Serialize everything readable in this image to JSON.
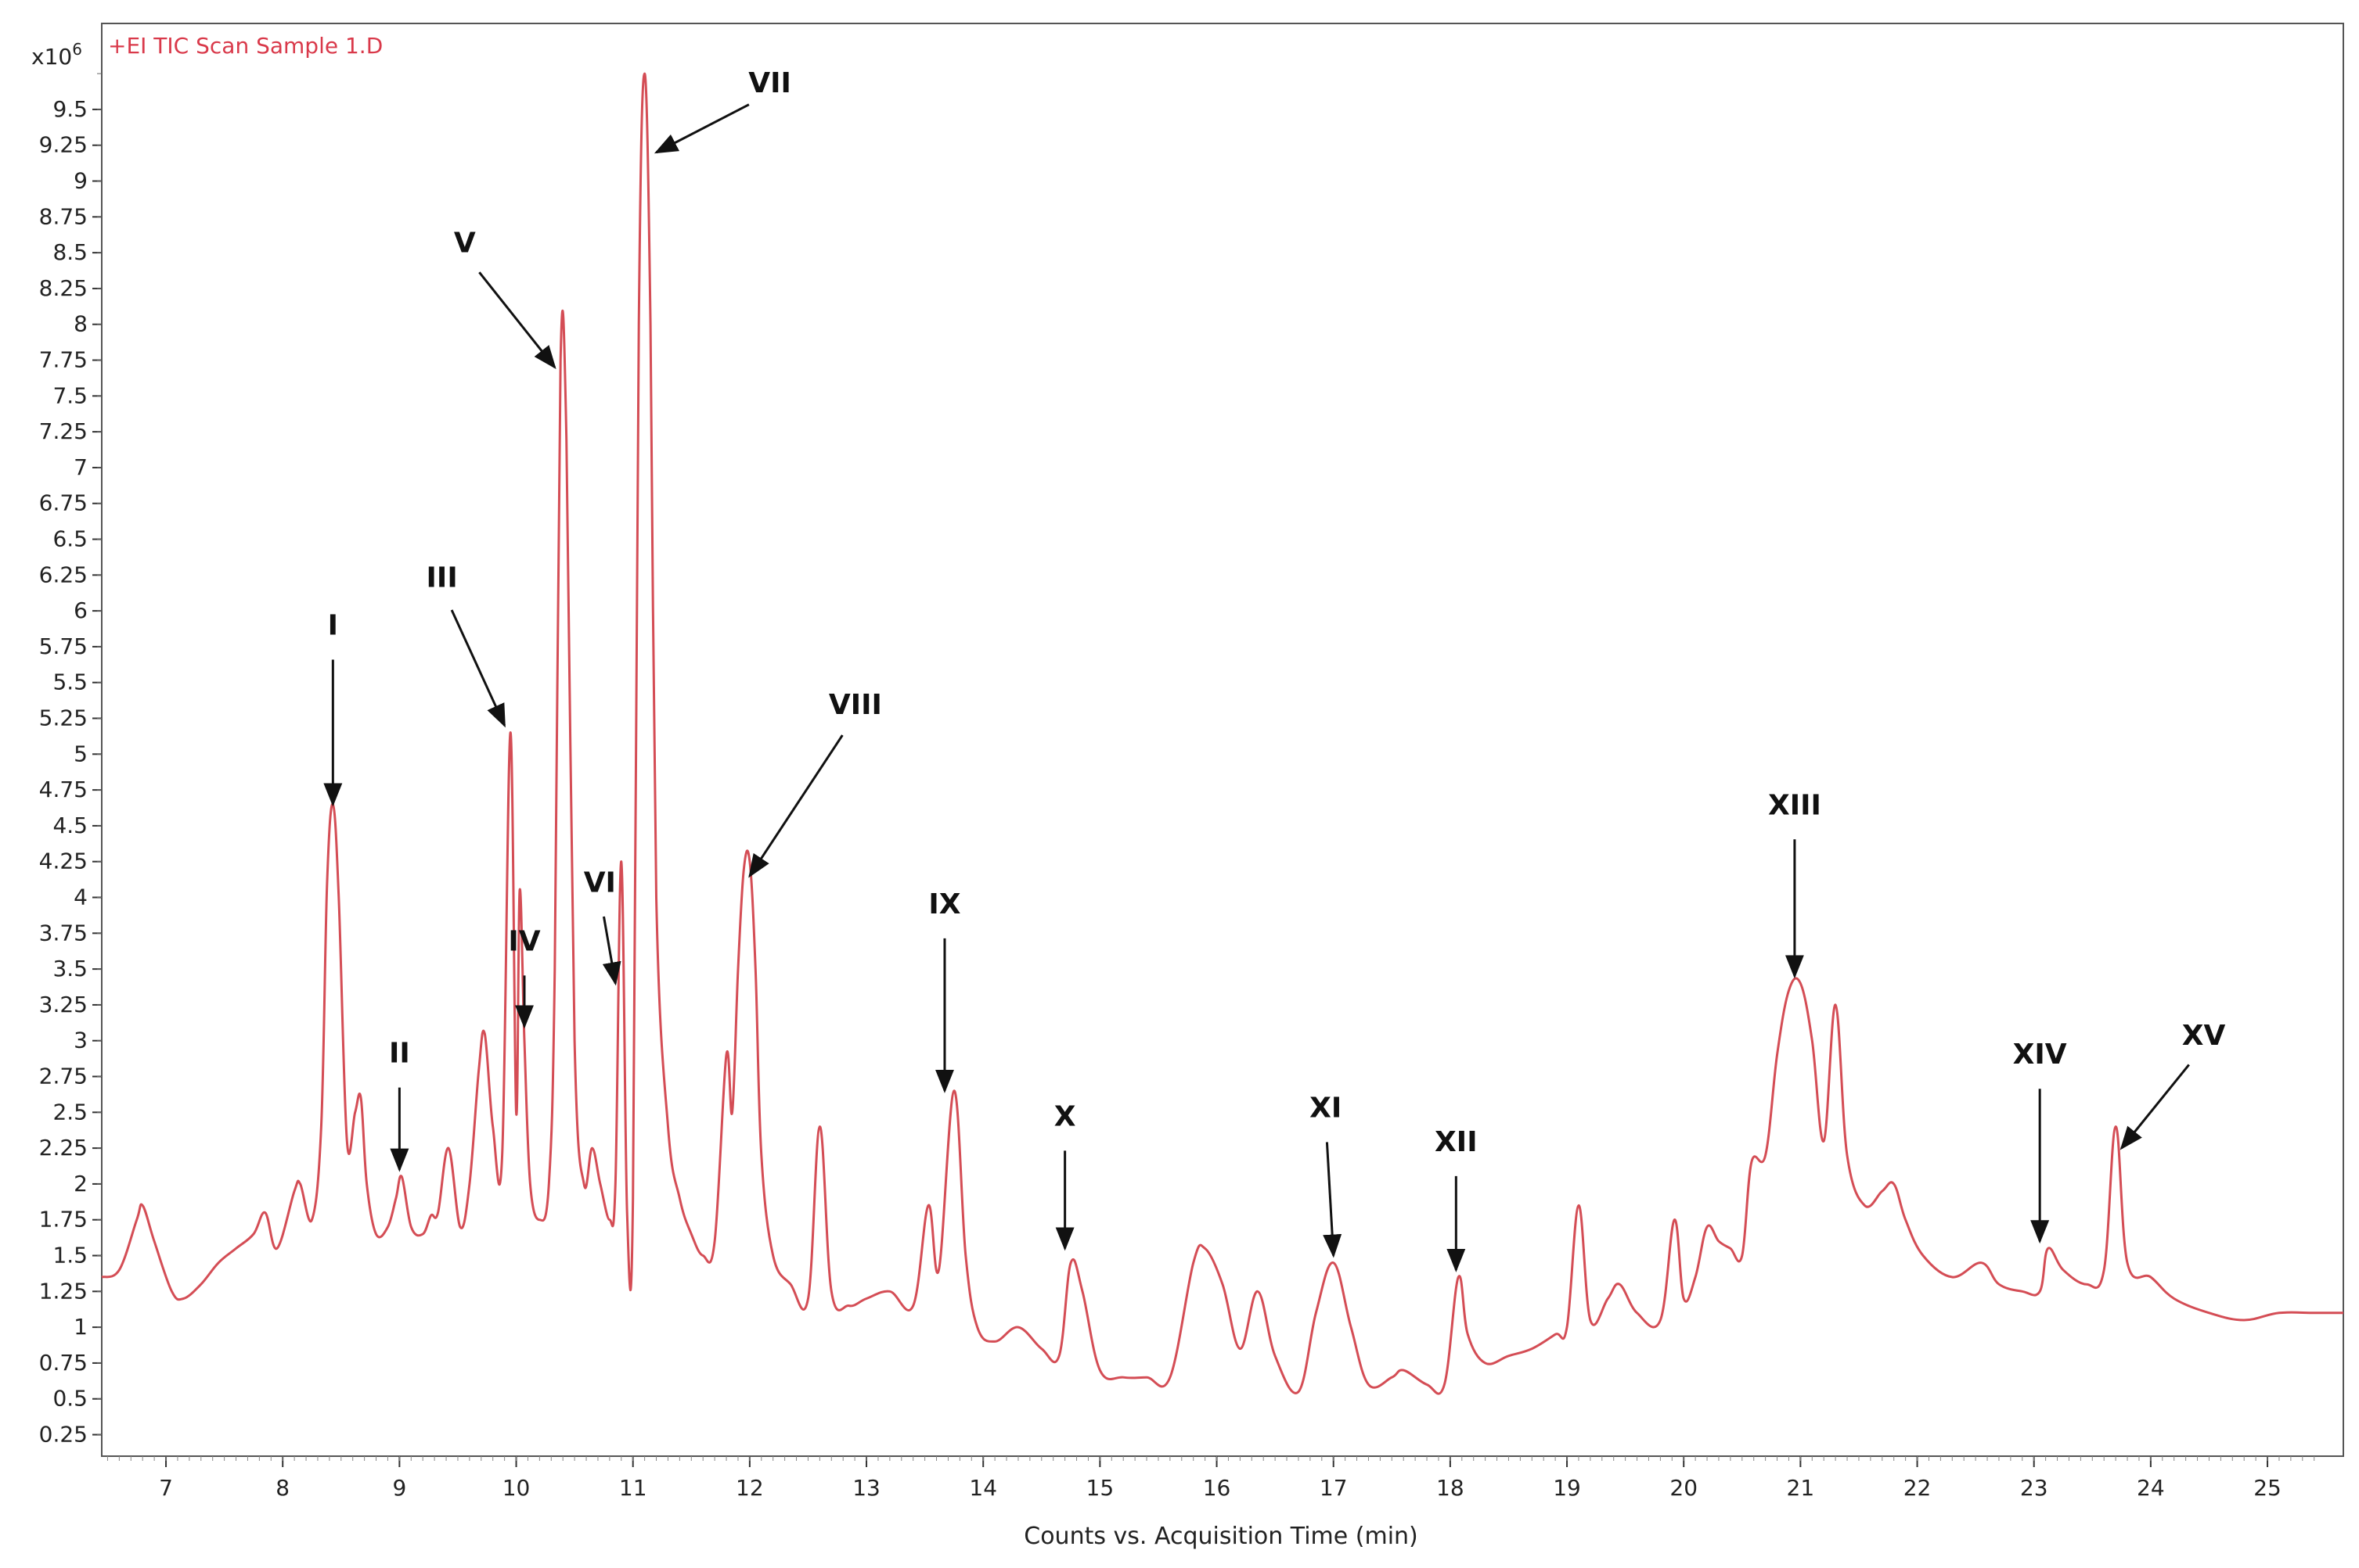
{
  "chart_data": {
    "type": "line",
    "trace_label": "+EI TIC Scan Sample 1.D",
    "xlabel": "Counts vs. Acquisition Time (min)",
    "y_multiplier_base": "x10",
    "y_multiplier_exp": "6",
    "xlim": [
      6.45,
      25.65
    ],
    "ylim": [
      0.1,
      10.1
    ],
    "x_ticks": [
      "7",
      "8",
      "9",
      "10",
      "11",
      "12",
      "13",
      "14",
      "15",
      "16",
      "17",
      "18",
      "19",
      "20",
      "21",
      "22",
      "23",
      "24",
      "25"
    ],
    "y_ticks": [
      "0.25",
      "0.5",
      "0.75",
      "1",
      "1.25",
      "1.5",
      "1.75",
      "2",
      "2.25",
      "2.5",
      "2.75",
      "3",
      "3.25",
      "3.5",
      "3.75",
      "4",
      "4.25",
      "4.5",
      "4.75",
      "5",
      "5.25",
      "5.5",
      "5.75",
      "6",
      "6.25",
      "6.5",
      "6.75",
      "7",
      "7.25",
      "7.5",
      "7.75",
      "8",
      "8.25",
      "8.5",
      "8.75",
      "9",
      "9.25",
      "9.5"
    ],
    "line_color": "#d44d55",
    "series": [
      {
        "x": [
          6.45,
          6.6,
          6.75,
          6.8,
          6.9,
          7.05,
          7.15,
          7.3,
          7.45,
          7.6,
          7.75,
          7.85,
          7.95,
          8.1,
          8.15,
          8.25,
          8.33,
          8.38,
          8.43,
          8.48,
          8.55,
          8.62,
          8.67,
          8.72,
          8.8,
          8.9,
          8.97,
          9.02,
          9.1,
          9.2,
          9.27,
          9.33,
          9.42,
          9.52,
          9.6,
          9.68,
          9.73,
          9.8,
          9.88,
          9.95,
          10.0,
          10.03,
          10.07,
          10.12,
          10.2,
          10.28,
          10.33,
          10.38,
          10.43,
          10.5,
          10.58,
          10.65,
          10.72,
          10.8,
          10.85,
          10.9,
          10.95,
          11.0,
          11.05,
          11.1,
          11.15,
          11.2,
          11.3,
          11.4,
          11.5,
          11.6,
          11.7,
          11.8,
          11.85,
          11.9,
          11.95,
          12.0,
          12.05,
          12.1,
          12.2,
          12.35,
          12.5,
          12.6,
          12.7,
          12.85,
          13.0,
          13.2,
          13.4,
          13.53,
          13.62,
          13.75,
          13.85,
          13.95,
          14.1,
          14.3,
          14.5,
          14.65,
          14.75,
          14.85,
          15.0,
          15.2,
          15.4,
          15.6,
          15.8,
          15.9,
          16.05,
          16.2,
          16.35,
          16.5,
          16.7,
          16.85,
          17.0,
          17.15,
          17.3,
          17.5,
          17.6,
          17.8,
          17.95,
          18.07,
          18.15,
          18.3,
          18.5,
          18.7,
          18.9,
          19.0,
          19.1,
          19.2,
          19.35,
          19.45,
          19.6,
          19.8,
          19.92,
          20.0,
          20.1,
          20.2,
          20.3,
          20.4,
          20.5,
          20.58,
          20.7,
          20.8,
          20.9,
          21.0,
          21.1,
          21.2,
          21.3,
          21.4,
          21.55,
          21.7,
          21.8,
          21.9,
          22.05,
          22.3,
          22.55,
          22.7,
          22.9,
          23.05,
          23.12,
          23.25,
          23.45,
          23.6,
          23.7,
          23.8,
          24.0,
          24.2,
          24.5,
          24.8,
          25.1,
          25.4,
          25.65
        ],
        "y": [
          1.35,
          1.4,
          1.75,
          1.85,
          1.6,
          1.25,
          1.2,
          1.3,
          1.45,
          1.55,
          1.65,
          1.8,
          1.55,
          1.95,
          2.0,
          1.75,
          2.4,
          4.1,
          4.65,
          4.0,
          2.3,
          2.5,
          2.6,
          2.0,
          1.65,
          1.7,
          1.9,
          2.05,
          1.7,
          1.65,
          1.78,
          1.8,
          2.25,
          1.7,
          2.0,
          2.8,
          3.05,
          2.4,
          2.2,
          5.15,
          2.5,
          4.05,
          3.0,
          2.0,
          1.75,
          2.0,
          3.5,
          7.75,
          7.2,
          3.0,
          2.0,
          2.25,
          2.0,
          1.75,
          2.0,
          4.25,
          1.8,
          1.9,
          8.0,
          9.75,
          8.0,
          4.0,
          2.4,
          1.9,
          1.65,
          1.5,
          1.6,
          2.9,
          2.5,
          3.5,
          4.2,
          4.25,
          3.5,
          2.2,
          1.5,
          1.3,
          1.2,
          2.4,
          1.25,
          1.15,
          1.2,
          1.25,
          1.15,
          1.85,
          1.4,
          2.65,
          1.5,
          1.0,
          0.9,
          1.0,
          0.85,
          0.8,
          1.45,
          1.25,
          0.7,
          0.65,
          0.65,
          0.65,
          1.45,
          1.55,
          1.3,
          0.85,
          1.25,
          0.8,
          0.55,
          1.1,
          1.45,
          1.0,
          0.6,
          0.65,
          0.7,
          0.6,
          0.6,
          1.35,
          0.95,
          0.75,
          0.8,
          0.85,
          0.95,
          1.0,
          1.85,
          1.05,
          1.2,
          1.3,
          1.1,
          1.05,
          1.75,
          1.2,
          1.35,
          1.7,
          1.6,
          1.55,
          1.5,
          2.15,
          2.2,
          2.9,
          3.35,
          3.4,
          3.0,
          2.3,
          3.25,
          2.2,
          1.85,
          1.95,
          2.0,
          1.75,
          1.5,
          1.35,
          1.45,
          1.3,
          1.25,
          1.25,
          1.55,
          1.4,
          1.3,
          1.4,
          2.4,
          1.45,
          1.35,
          1.2,
          1.1,
          1.05,
          1.1,
          1.1,
          1.1
        ]
      }
    ],
    "annotations": [
      {
        "label": "I",
        "x": 8.43,
        "y": 4.65
      },
      {
        "label": "II",
        "x": 9.0,
        "y": 2.1
      },
      {
        "label": "III",
        "x": 9.9,
        "y": 5.2
      },
      {
        "label": "IV",
        "x": 10.07,
        "y": 3.1
      },
      {
        "label": "V",
        "x": 10.33,
        "y": 7.7
      },
      {
        "label": "VI",
        "x": 10.85,
        "y": 3.4
      },
      {
        "label": "VII",
        "x": 11.2,
        "y": 9.2
      },
      {
        "label": "VIII",
        "x": 12.0,
        "y": 4.15
      },
      {
        "label": "IX",
        "x": 13.67,
        "y": 2.65
      },
      {
        "label": "X",
        "x": 14.7,
        "y": 1.55
      },
      {
        "label": "XI",
        "x": 17.0,
        "y": 1.5
      },
      {
        "label": "XII",
        "x": 18.05,
        "y": 1.4
      },
      {
        "label": "XIII",
        "x": 20.95,
        "y": 3.45
      },
      {
        "label": "XIV",
        "x": 23.05,
        "y": 1.6
      },
      {
        "label": "XV",
        "x": 23.75,
        "y": 2.25
      }
    ]
  }
}
